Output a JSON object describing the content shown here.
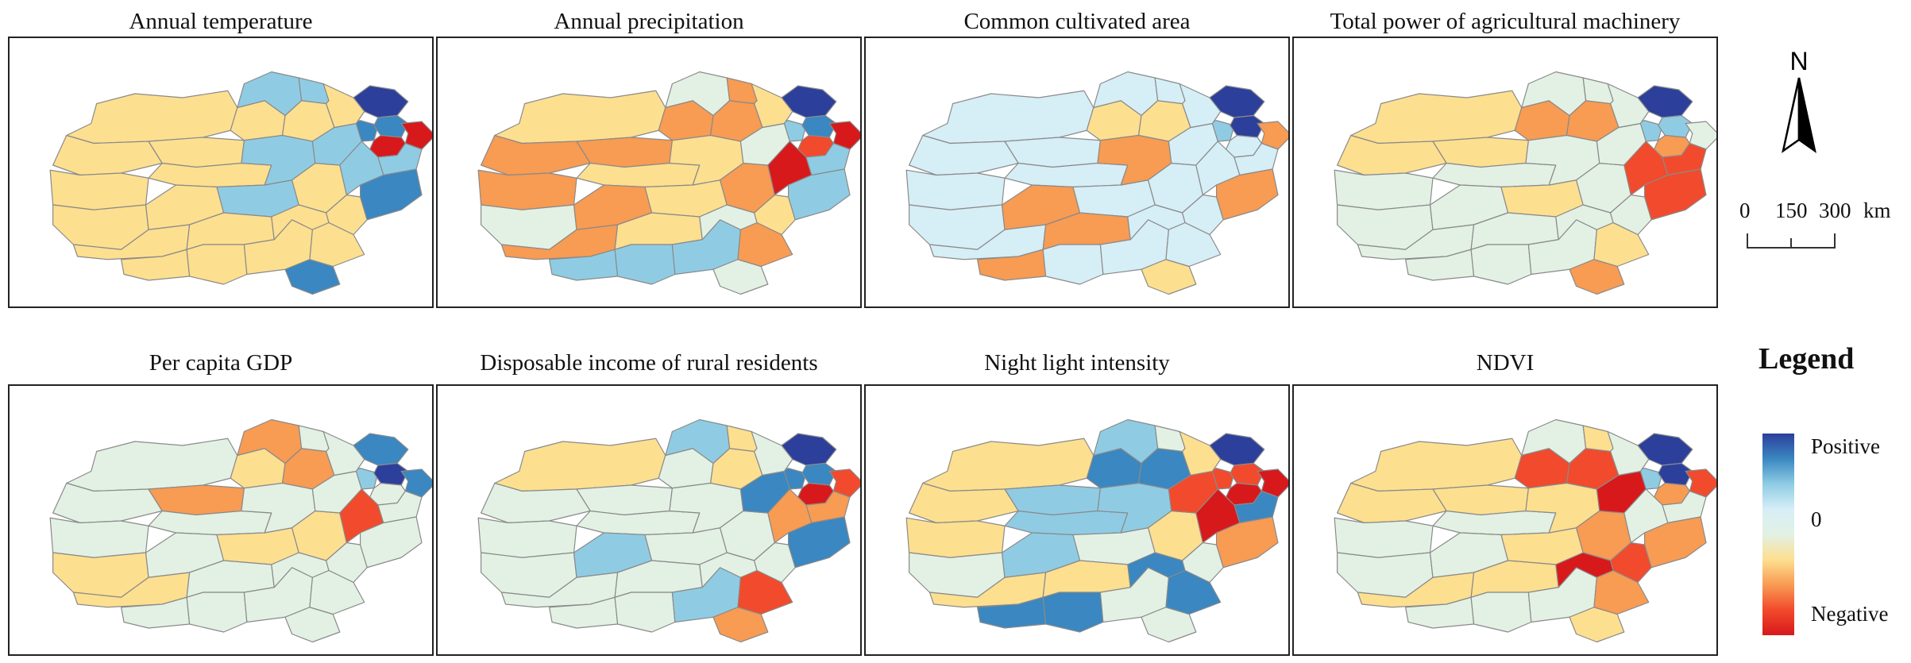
{
  "colors": {
    "c1": "#d7191c",
    "c2": "#f24a2c",
    "c3": "#f89b53",
    "c4": "#fddf90",
    "c5": "#e2f1e4",
    "c6": "#d6eef6",
    "c7": "#8fcce4",
    "c8": "#3a87c1",
    "c9": "#2c3f9b",
    "highlight": "#00e5ff"
  },
  "panels": [
    {
      "title": "Annual temperature",
      "fills": [
        "c4",
        "c4",
        "c4",
        "c4",
        "c4",
        "c4",
        "c7",
        "c4",
        "c4",
        "c4",
        "c7",
        "c7",
        "c7",
        "c4",
        "c4",
        "c4",
        "c4",
        "c4",
        "c4",
        "c4",
        "c4",
        "c7",
        "c8",
        "c9",
        "c8",
        "c1",
        "c1",
        "c7",
        "c7",
        "c8",
        "c8",
        "c4",
        "c4"
      ]
    },
    {
      "title": "Annual precipitation",
      "fills": [
        "c4",
        "c3",
        "c3",
        "c3",
        "c4",
        "c3",
        "c5",
        "c3",
        "c5",
        "c3",
        "c4",
        "c4",
        "c3",
        "c3",
        "c4",
        "c3",
        "c7",
        "c7",
        "c7",
        "c5",
        "c4",
        "c5",
        "c7",
        "c9",
        "c8",
        "c1",
        "c2",
        "c1",
        "c7",
        "c7",
        "c5",
        "c3",
        "c4"
      ]
    },
    {
      "title": "Common cultivated area",
      "fills": [
        "c6",
        "c6",
        "c6",
        "c6",
        "c6",
        "c4",
        "c6",
        "c4",
        "c6",
        "c3",
        "c6",
        "c3",
        "c6",
        "c6",
        "c3",
        "c6",
        "c3",
        "c6",
        "c6",
        "c6",
        "c6",
        "c6",
        "c7",
        "c9",
        "c9",
        "c3",
        "c6",
        "c6",
        "c6",
        "c3",
        "c4",
        "c6",
        "c6"
      ]
    },
    {
      "title": "Total power of agricultural machinery",
      "fills": [
        "c4",
        "c4",
        "c5",
        "c4",
        "c5",
        "c3",
        "c5",
        "c3",
        "c5",
        "c5",
        "c4",
        "c5",
        "c5",
        "c5",
        "c5",
        "c5",
        "c5",
        "c5",
        "c5",
        "c5",
        "c5",
        "c5",
        "c7",
        "c9",
        "c7",
        "c5",
        "c3",
        "c2",
        "c2",
        "c2",
        "c3",
        "c4",
        "c5"
      ]
    },
    {
      "title": "Per capita GDP",
      "fills": [
        "c5",
        "c5",
        "c5",
        "c3",
        "c5",
        "c4",
        "c3",
        "c3",
        "c4",
        "c5",
        "c4",
        "c5",
        "c5",
        "c4",
        "c5",
        "c4",
        "c5",
        "c5",
        "c5",
        "c5",
        "c5",
        "c5",
        "c7",
        "c8",
        "c9",
        "c8",
        "c5",
        "c2",
        "c5",
        "c5",
        "c5",
        "c5",
        "c5"
      ]
    },
    {
      "title": "Disposable income of rural residents",
      "fills": [
        "c4",
        "c5",
        "c5",
        "c5",
        "c5",
        "c5",
        "c7",
        "c4",
        "c5",
        "c7",
        "c5",
        "c5",
        "c4",
        "c5",
        "c5",
        "c5",
        "c5",
        "c5",
        "c7",
        "c5",
        "c5",
        "c8",
        "c8",
        "c9",
        "c8",
        "c2",
        "c1",
        "c3",
        "c3",
        "c8",
        "c3",
        "c2",
        "c5"
      ]
    },
    {
      "title": "Night light intensity",
      "fills": [
        "c4",
        "c4",
        "c4",
        "c7",
        "c7",
        "c8",
        "c7",
        "c8",
        "c5",
        "c7",
        "c5",
        "c7",
        "c5",
        "c4",
        "c4",
        "c4",
        "c8",
        "c8",
        "c5",
        "c8",
        "c5",
        "c2",
        "c2",
        "c9",
        "c2",
        "c1",
        "c1",
        "c1",
        "c8",
        "c3",
        "c5",
        "c8",
        "c4"
      ]
    },
    {
      "title": "NDVI",
      "fills": [
        "c4",
        "c4",
        "c5",
        "c4",
        "c5",
        "c2",
        "c5",
        "c2",
        "c5",
        "c5",
        "c4",
        "c4",
        "c4",
        "c4",
        "c4",
        "c3",
        "c5",
        "c5",
        "c5",
        "c1",
        "c2",
        "c1",
        "c7",
        "c9",
        "c9",
        "c2",
        "c3",
        "c5",
        "c5",
        "c3",
        "c4",
        "c3",
        "c5"
      ]
    }
  ],
  "north": {
    "label": "N"
  },
  "scale": {
    "ticks": [
      "0",
      "150",
      "300"
    ],
    "unit": "km"
  },
  "legend": {
    "title": "Legend",
    "positive": "Positive",
    "zero": "0",
    "negative": "Negative"
  }
}
